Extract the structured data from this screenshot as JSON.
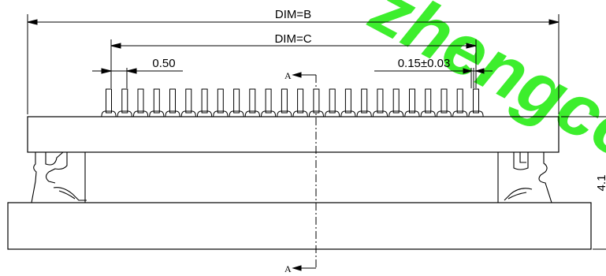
{
  "dimensions": {
    "overall_width_label": "DIM=B",
    "pin_span_label": "DIM=C",
    "pitch_label": "0.50",
    "pin_width_label": "0.15±0.03",
    "height_label": "4.1"
  },
  "section_markers": {
    "top": "A",
    "bottom": "A"
  },
  "watermark": {
    "text": "zhengco",
    "color": "#33ee22"
  },
  "connector": {
    "pin_count": 24
  }
}
